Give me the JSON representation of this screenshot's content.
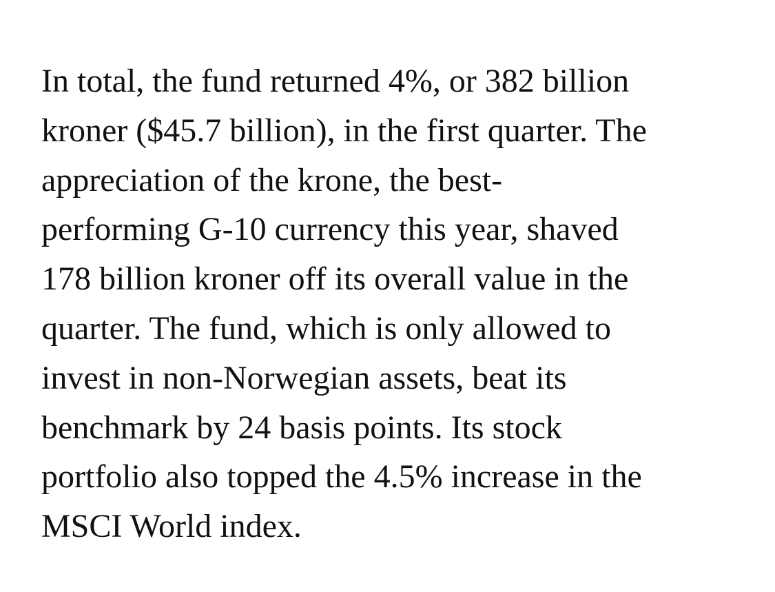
{
  "paragraph": {
    "lines": [
      "In total, the fund returned 4%, or 382 billion",
      "kroner ($45.7 billion), in the first quarter. The",
      "appreciation of the krone, the best-",
      "performing G-10 currency this year, shaved",
      "178 billion kroner off its overall value in the",
      "quarter. The fund, which is only allowed to",
      "invest in non-Norwegian assets, beat its",
      "benchmark by 24 basis points. Its stock",
      "portfolio also topped the 4.5% increase in the",
      "MSCI World index."
    ]
  }
}
